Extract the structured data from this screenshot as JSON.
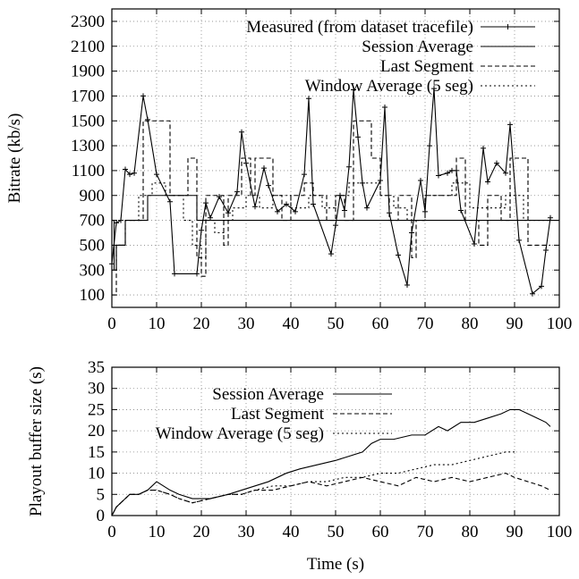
{
  "chart_data": [
    {
      "type": "line",
      "ylabel": "Bitrate (kb/s)",
      "xlabel": "",
      "xlim": [
        0,
        100
      ],
      "ylim": [
        0,
        2400
      ],
      "xticks": [
        0,
        10,
        20,
        30,
        40,
        50,
        60,
        70,
        80,
        90,
        100
      ],
      "yticks": [
        100,
        300,
        500,
        700,
        900,
        1100,
        1300,
        1500,
        1700,
        1900,
        2100,
        2300
      ],
      "grid": true,
      "legend": "top-right",
      "series": [
        {
          "name": "Measured (from dataset tracefile)",
          "style": "solid-markers",
          "x": [
            0,
            1,
            2,
            3,
            4,
            5,
            7,
            8,
            10,
            13,
            14,
            19,
            20,
            21,
            22,
            24,
            26,
            28,
            29,
            30,
            32,
            34,
            35,
            37,
            39,
            41,
            43,
            44,
            45,
            49,
            50,
            51,
            52,
            53,
            54,
            55,
            56,
            57,
            60,
            61,
            62,
            64,
            66,
            67,
            69,
            70,
            71,
            72,
            73,
            75,
            76,
            77,
            78,
            81,
            83,
            84,
            86,
            88,
            89,
            91,
            94,
            96,
            97,
            98
          ],
          "y": [
            350,
            680,
            700,
            1110,
            1070,
            1080,
            1700,
            1510,
            1070,
            850,
            270,
            270,
            620,
            840,
            720,
            890,
            760,
            930,
            1410,
            1160,
            810,
            1120,
            980,
            770,
            830,
            770,
            1070,
            1680,
            830,
            430,
            660,
            900,
            780,
            1130,
            1750,
            1370,
            1000,
            800,
            1020,
            1610,
            760,
            420,
            180,
            600,
            1020,
            770,
            1300,
            1760,
            1060,
            1080,
            1100,
            1100,
            780,
            510,
            1280,
            1010,
            1160,
            1080,
            1470,
            540,
            110,
            170,
            460,
            720
          ]
        },
        {
          "name": "Session Average",
          "style": "solid",
          "step_x": [
            0,
            0.5,
            1,
            2,
            3,
            5,
            8,
            12,
            19,
            21,
            100
          ],
          "step_y": [
            700,
            300,
            500,
            500,
            700,
            700,
            900,
            900,
            700,
            700,
            700
          ]
        },
        {
          "name": "Last Segment",
          "style": "dashed",
          "step_x": [
            0,
            1,
            3,
            7,
            10,
            13,
            17,
            19,
            20,
            21,
            25,
            26,
            29,
            31,
            32,
            36,
            38,
            40,
            43,
            45,
            48,
            50,
            52,
            54,
            56,
            58,
            60,
            62,
            64,
            67,
            68,
            70,
            72,
            75,
            77,
            79,
            82,
            84,
            87,
            89,
            93,
            98
          ],
          "step_y": [
            100,
            500,
            700,
            1500,
            1500,
            900,
            1200,
            400,
            250,
            900,
            500,
            900,
            1200,
            900,
            1200,
            900,
            700,
            900,
            1000,
            900,
            700,
            900,
            700,
            1500,
            1500,
            1200,
            900,
            700,
            900,
            400,
            700,
            900,
            900,
            900,
            1200,
            700,
            500,
            900,
            700,
            1200,
            500,
            500
          ]
        },
        {
          "name": "Window Average (5 seg)",
          "style": "dotted",
          "step_x": [
            0,
            1,
            3,
            6,
            9,
            12,
            16,
            18,
            20,
            21,
            23,
            25,
            27,
            30,
            33,
            36,
            40,
            44,
            47,
            50,
            53,
            56,
            60,
            63,
            66,
            70,
            73,
            76,
            80,
            84,
            88,
            92,
            98
          ],
          "step_y": [
            300,
            500,
            700,
            900,
            1000,
            900,
            700,
            500,
            400,
            700,
            600,
            700,
            800,
            900,
            800,
            900,
            800,
            900,
            800,
            900,
            1000,
            1000,
            900,
            800,
            700,
            900,
            900,
            1000,
            800,
            800,
            900,
            700,
            700
          ]
        }
      ]
    },
    {
      "type": "line",
      "ylabel": "Playout buffer size (s)",
      "xlabel": "Time (s)",
      "xlim": [
        0,
        100
      ],
      "ylim": [
        0,
        35
      ],
      "xticks": [
        0,
        10,
        20,
        30,
        40,
        50,
        60,
        70,
        80,
        90,
        100
      ],
      "yticks": [
        0,
        5,
        10,
        15,
        20,
        25,
        30,
        35
      ],
      "grid": true,
      "legend": "top-left",
      "series": [
        {
          "name": "Session Average",
          "style": "solid",
          "x": [
            0,
            1,
            2,
            4,
            6,
            8,
            10,
            13,
            15,
            18,
            22,
            26,
            29,
            32,
            35,
            39,
            42,
            46,
            50,
            53,
            56,
            58,
            60,
            63,
            67,
            70,
            73,
            75,
            78,
            81,
            84,
            87,
            89,
            91,
            93,
            95,
            97,
            98
          ],
          "y": [
            0,
            2,
            3,
            5,
            5,
            6,
            8,
            6,
            5,
            4,
            4,
            5,
            6,
            7,
            8,
            10,
            11,
            12,
            13,
            14,
            15,
            17,
            18,
            18,
            19,
            19,
            21,
            20,
            22,
            22,
            23,
            24,
            25,
            25,
            24,
            23,
            22,
            21
          ]
        },
        {
          "name": "Last Segment",
          "style": "dashed",
          "x": [
            0,
            1,
            2,
            4,
            6,
            8,
            10,
            13,
            15,
            18,
            22,
            26,
            29,
            32,
            36,
            40,
            44,
            48,
            52,
            56,
            60,
            64,
            68,
            72,
            76,
            80,
            84,
            88,
            90,
            93,
            96,
            98
          ],
          "y": [
            0,
            2,
            3,
            5,
            5,
            6,
            6,
            5,
            4,
            3,
            4,
            5,
            5,
            6,
            6,
            7,
            8,
            7,
            8,
            9,
            8,
            7,
            9,
            8,
            9,
            8,
            9,
            10,
            9,
            8,
            7,
            6
          ]
        },
        {
          "name": "Window Average (5 seg)",
          "style": "dotted",
          "x": [
            0,
            1,
            2,
            4,
            6,
            8,
            10,
            13,
            15,
            18,
            22,
            26,
            29,
            32,
            36,
            40,
            44,
            48,
            52,
            56,
            60,
            64,
            68,
            72,
            76,
            80,
            84,
            88,
            90
          ],
          "y": [
            0,
            2,
            3,
            5,
            5,
            6,
            6,
            5,
            4,
            3,
            4,
            5,
            5,
            6,
            7,
            7,
            8,
            8,
            9,
            9,
            10,
            10,
            11,
            12,
            12,
            13,
            14,
            15,
            15
          ]
        }
      ]
    }
  ]
}
